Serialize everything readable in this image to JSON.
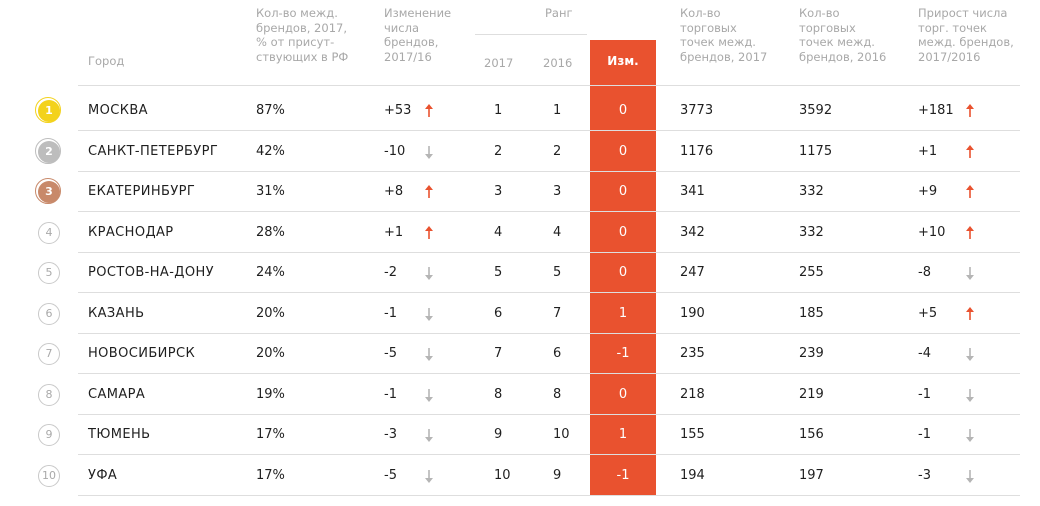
{
  "headers": {
    "city": "Город",
    "share": [
      "Кол-во межд.",
      "брендов, 2017,",
      "% от присут-",
      "ствующих в РФ"
    ],
    "brand_change": [
      "Изменение",
      "числа",
      "брендов,",
      "2017/16"
    ],
    "rank": "Ранг",
    "rank_2017": "2017",
    "rank_2016": "2016",
    "rank_change": "Изм.",
    "points_2017": [
      "Кол-во",
      "торговых",
      "точек межд.",
      "брендов, 2017"
    ],
    "points_2016": [
      "Кол-во",
      "торговых",
      "точек межд.",
      "брендов, 2016"
    ],
    "points_growth": [
      "Прирост числа",
      "торг. точек",
      "межд. брендов,",
      "2017/2016"
    ]
  },
  "colors": {
    "accent": "#e9522f",
    "up_arrow": "#e9522f",
    "down_arrow": "#b5b5b5",
    "gold": "#f3d21c",
    "silver": "#bdbdbd",
    "bronze": "#c8896a"
  },
  "rows": [
    {
      "badge": "1",
      "city": "МОСКВА",
      "share": "87%",
      "brand_change": "+53",
      "brand_dir": "up",
      "r2017": "1",
      "r2016": "1",
      "rchg": "0",
      "p2017": "3773",
      "p2016": "3592",
      "pgrowth": "+181",
      "pdir": "up"
    },
    {
      "badge": "2",
      "city": "САНКТ-ПЕТЕРБУРГ",
      "share": "42%",
      "brand_change": "-10",
      "brand_dir": "down",
      "r2017": "2",
      "r2016": "2",
      "rchg": "0",
      "p2017": "1176",
      "p2016": "1175",
      "pgrowth": "+1",
      "pdir": "up"
    },
    {
      "badge": "3",
      "city": "ЕКАТЕРИНБУРГ",
      "share": "31%",
      "brand_change": "+8",
      "brand_dir": "up",
      "r2017": "3",
      "r2016": "3",
      "rchg": "0",
      "p2017": "341",
      "p2016": "332",
      "pgrowth": "+9",
      "pdir": "up"
    },
    {
      "badge": "4",
      "city": "КРАСНОДАР",
      "share": "28%",
      "brand_change": "+1",
      "brand_dir": "up",
      "r2017": "4",
      "r2016": "4",
      "rchg": "0",
      "p2017": "342",
      "p2016": "332",
      "pgrowth": "+10",
      "pdir": "up"
    },
    {
      "badge": "5",
      "city": "РОСТОВ-НА-ДОНУ",
      "share": "24%",
      "brand_change": "-2",
      "brand_dir": "down",
      "r2017": "5",
      "r2016": "5",
      "rchg": "0",
      "p2017": "247",
      "p2016": "255",
      "pgrowth": "-8",
      "pdir": "down"
    },
    {
      "badge": "6",
      "city": "КАЗАНЬ",
      "share": "20%",
      "brand_change": "-1",
      "brand_dir": "down",
      "r2017": "6",
      "r2016": "7",
      "rchg": "1",
      "p2017": "190",
      "p2016": "185",
      "pgrowth": "+5",
      "pdir": "up"
    },
    {
      "badge": "7",
      "city": "НОВОСИБИРСК",
      "share": "20%",
      "brand_change": "-5",
      "brand_dir": "down",
      "r2017": "7",
      "r2016": "6",
      "rchg": "-1",
      "p2017": "235",
      "p2016": "239",
      "pgrowth": "-4",
      "pdir": "down"
    },
    {
      "badge": "8",
      "city": "САМАРА",
      "share": "19%",
      "brand_change": "-1",
      "brand_dir": "down",
      "r2017": "8",
      "r2016": "8",
      "rchg": "0",
      "p2017": "218",
      "p2016": "219",
      "pgrowth": "-1",
      "pdir": "down"
    },
    {
      "badge": "9",
      "city": "ТЮМЕНЬ",
      "share": "17%",
      "brand_change": "-3",
      "brand_dir": "down",
      "r2017": "9",
      "r2016": "10",
      "rchg": "1",
      "p2017": "155",
      "p2016": "156",
      "pgrowth": "-1",
      "pdir": "down"
    },
    {
      "badge": "10",
      "city": "УФА",
      "share": "17%",
      "brand_change": "-5",
      "brand_dir": "down",
      "r2017": "10",
      "r2016": "9",
      "rchg": "-1",
      "p2017": "194",
      "p2016": "197",
      "pgrowth": "-3",
      "pdir": "down"
    }
  ]
}
